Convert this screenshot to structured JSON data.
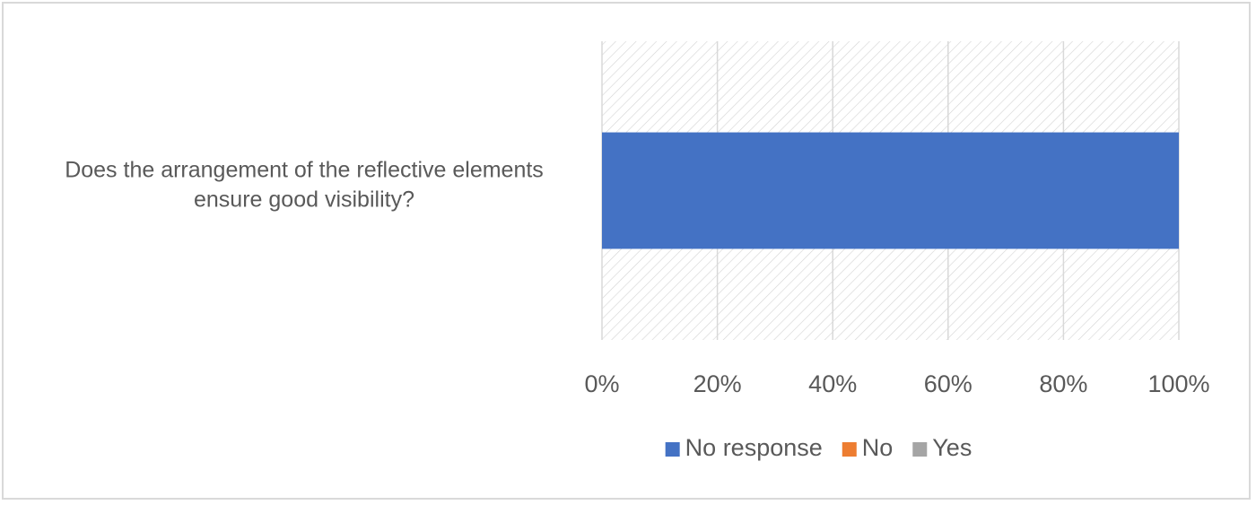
{
  "chart_data": {
    "type": "bar",
    "orientation": "horizontal",
    "stacked": "percent",
    "categories": [
      "Does the arrangement of the reflective elements ensure good visibility?"
    ],
    "category_lines": [
      [
        "Does the arrangement of the reflective elements",
        "ensure good visibility?"
      ]
    ],
    "series": [
      {
        "name": "No response",
        "values": [
          100
        ],
        "color": "#4472c4"
      },
      {
        "name": "No",
        "values": [
          0
        ],
        "color": "#ed7d31"
      },
      {
        "name": "Yes",
        "values": [
          0
        ],
        "color": "#a5a5a5"
      }
    ],
    "x_ticks": [
      "0%",
      "20%",
      "40%",
      "60%",
      "80%",
      "100%"
    ],
    "xlim": [
      0,
      100
    ],
    "grid": true,
    "plot_background": "hatched",
    "legend_position": "bottom",
    "title": "",
    "xlabel": "",
    "ylabel": ""
  }
}
